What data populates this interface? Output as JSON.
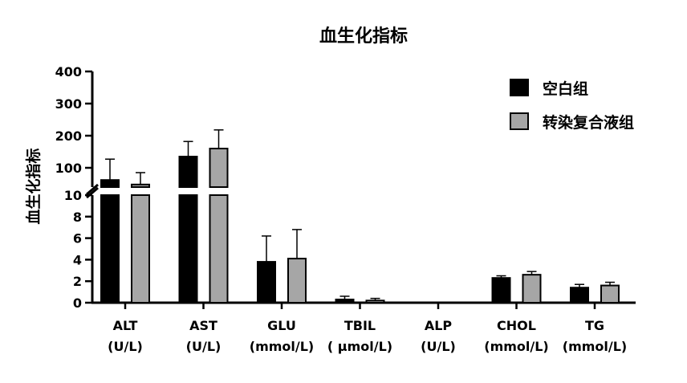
{
  "chart_data": {
    "type": "bar",
    "title": "血生化指标",
    "ylabel": "血生化指标",
    "xlabel": "",
    "categories": [
      {
        "name": "ALT",
        "unit": "(U/L)"
      },
      {
        "name": "AST",
        "unit": "(U/L)"
      },
      {
        "name": "GLU",
        "unit": "(mmol/L)"
      },
      {
        "name": "TBIL",
        "unit": "( μmol/L)"
      },
      {
        "name": "ALP",
        "unit": "(U/L)"
      },
      {
        "name": "CHOL",
        "unit": "(mmol/L)"
      },
      {
        "name": "TG",
        "unit": "(mmol/L)"
      }
    ],
    "series": [
      {
        "name": "空白组",
        "color": "#000000",
        "values": [
          62,
          135,
          3.8,
          0.3,
          0,
          2.3,
          1.4
        ],
        "errors": [
          65,
          47,
          2.4,
          0.3,
          0,
          0.2,
          0.3
        ]
      },
      {
        "name": "转染复合液组",
        "color": "#a6a6a6",
        "values": [
          48,
          160,
          4.1,
          0.2,
          0,
          2.6,
          1.6
        ],
        "errors": [
          37,
          58,
          2.7,
          0.2,
          0,
          0.3,
          0.3
        ]
      }
    ],
    "y_axis": {
      "broken": true,
      "lower_range": [
        0,
        10
      ],
      "lower_ticks": [
        "0",
        "2",
        "4",
        "6",
        "8",
        "10"
      ],
      "upper_range": [
        0,
        400
      ],
      "upper_ticks": [
        "100",
        "200",
        "300",
        "400"
      ]
    },
    "legend": {
      "position": "top-right"
    },
    "grid": false
  }
}
